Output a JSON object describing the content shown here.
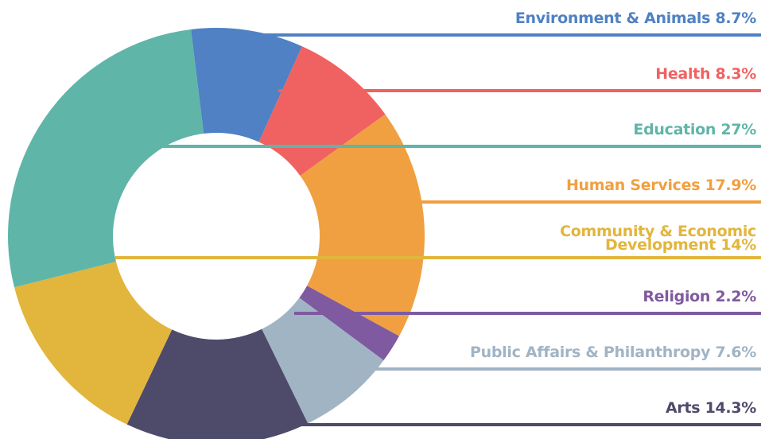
{
  "chart_data": {
    "type": "donut",
    "categories": [
      "Environment & Animals",
      "Health",
      "Human Services",
      "Religion",
      "Public Affairs & Philanthropy",
      "Arts",
      "Community & Economic Development",
      "Education"
    ],
    "values": [
      8.7,
      8.3,
      17.9,
      2.2,
      7.6,
      14.3,
      14,
      27
    ],
    "value_labels": [
      "8.7%",
      "8.3%",
      "17.9%",
      "2.2%",
      "7.6%",
      "14.3%",
      "14%",
      "27%"
    ],
    "colors": [
      "#4f81c4",
      "#f06262",
      "#f0a040",
      "#7f5aa0",
      "#a0b4c4",
      "#4e4a6a",
      "#e2b53c",
      "#5fb5a8"
    ]
  }
}
